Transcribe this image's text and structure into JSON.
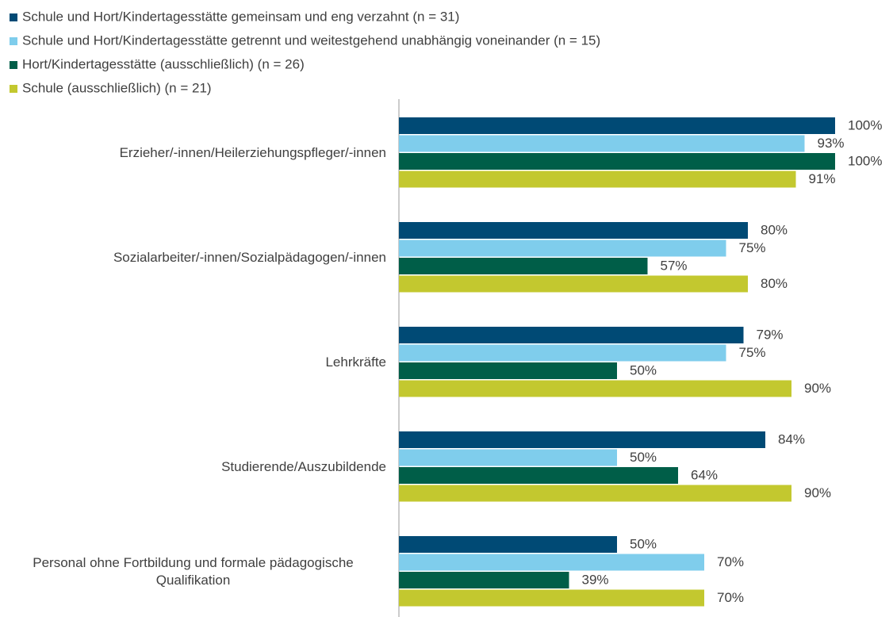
{
  "chart_data": {
    "type": "bar",
    "orientation": "horizontal",
    "categories": [
      "Erzieher/-innen/Heilerziehungspfleger/-innen",
      "Sozialarbeiter/-innen/Sozialpädagogen/-innen",
      "Lehrkräfte",
      "Studierende/Auszubildende",
      "Personal ohne Fortbildung und formale pädagogische Qualifikation"
    ],
    "series": [
      {
        "name": "Schule und Hort/Kindertagesstätte gemeinsam und eng verzahnt (n = 31)",
        "color": "#004a75",
        "values": [
          100,
          80,
          79,
          84,
          50
        ],
        "value_labels": [
          "100%",
          "80%",
          "79%",
          "84%",
          "50%"
        ]
      },
      {
        "name": "Schule und Hort/Kindertagesstätte getrennt und weitestgehend unabhängig voneinander (n = 15)",
        "color": "#7fcdec",
        "values": [
          93,
          75,
          75,
          50,
          70
        ],
        "value_labels": [
          "93%",
          "75%",
          "75%",
          "50%",
          "70%"
        ]
      },
      {
        "name": "Hort/Kindertagesstätte (ausschließlich) (n = 26)",
        "color": "#005e48",
        "values": [
          100,
          57,
          50,
          64,
          39
        ],
        "value_labels": [
          "100%",
          "57%",
          "50%",
          "64%",
          "39%"
        ]
      },
      {
        "name": "Schule (ausschließlich) (n = 21)",
        "color": "#c3c82f",
        "values": [
          91,
          80,
          90,
          90,
          70
        ],
        "value_labels": [
          "91%",
          "80%",
          "90%",
          "90%",
          "70%"
        ]
      }
    ],
    "xlim": [
      0,
      100
    ],
    "legend": "top-left"
  }
}
